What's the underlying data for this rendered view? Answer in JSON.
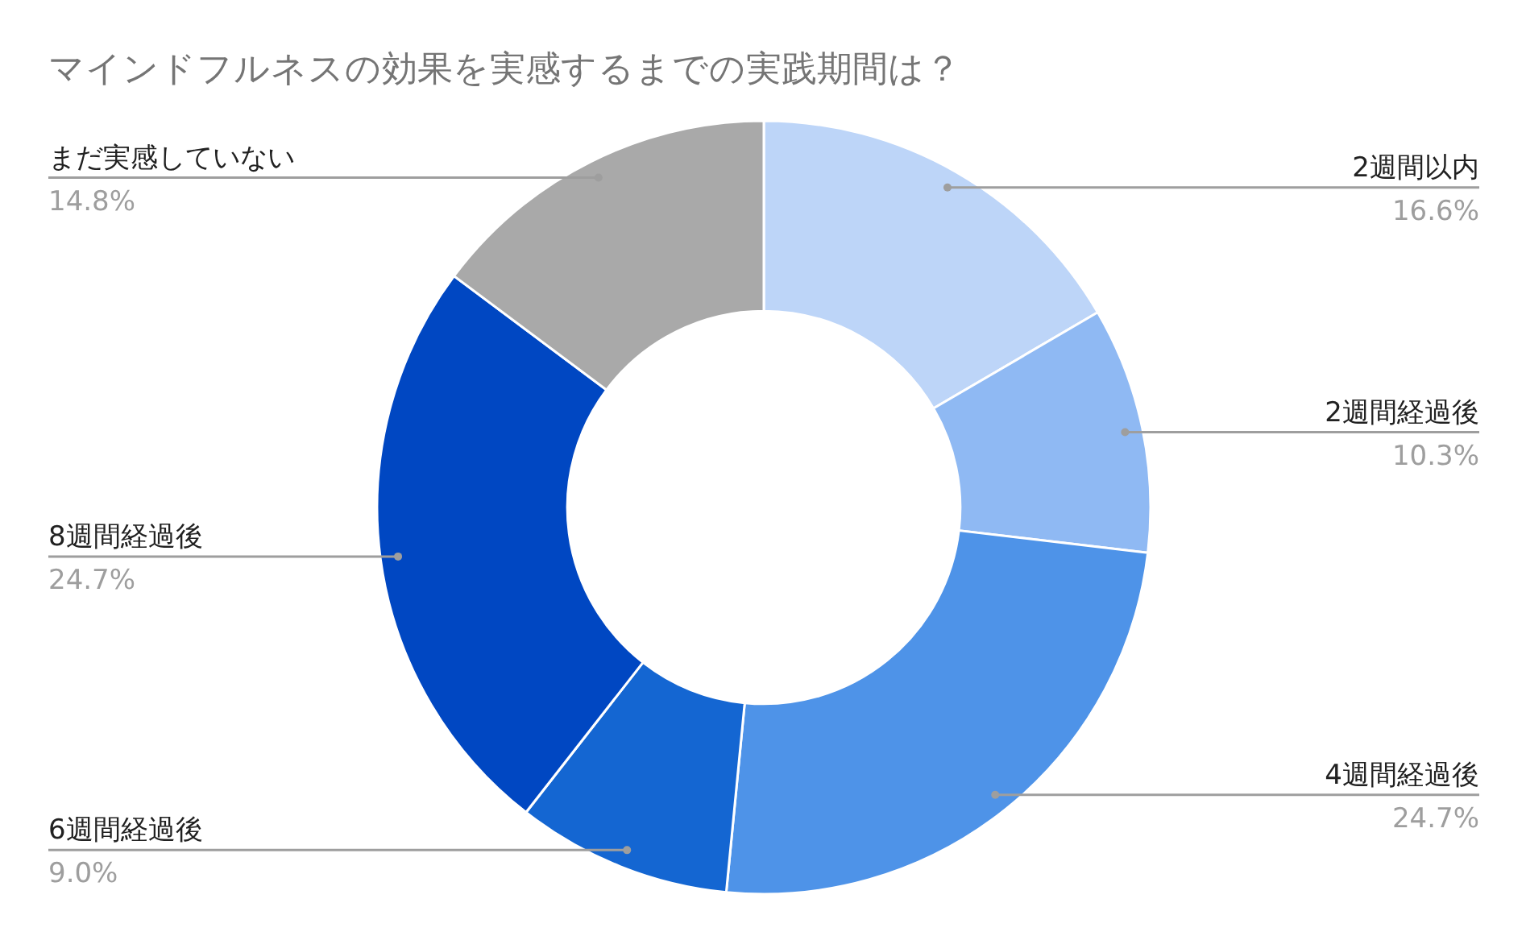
{
  "chart_data": {
    "type": "donut",
    "title": "マインドフルネスの効果を実感するまでの実践期間は？",
    "categories": [
      "2週間以内",
      "2週間経過後",
      "4週間経過後",
      "6週間経過後",
      "8週間経過後",
      "まだ実感していない"
    ],
    "values": [
      16.6,
      10.3,
      24.7,
      9.0,
      24.7,
      14.8
    ],
    "value_labels": [
      "16.6%",
      "10.3%",
      "24.7%",
      "9.0%",
      "24.7%",
      "14.8%"
    ],
    "colors": [
      "#bdd5f8",
      "#8fb9f3",
      "#4e93e8",
      "#1466d2",
      "#0047c2",
      "#a9a9a9"
    ]
  }
}
